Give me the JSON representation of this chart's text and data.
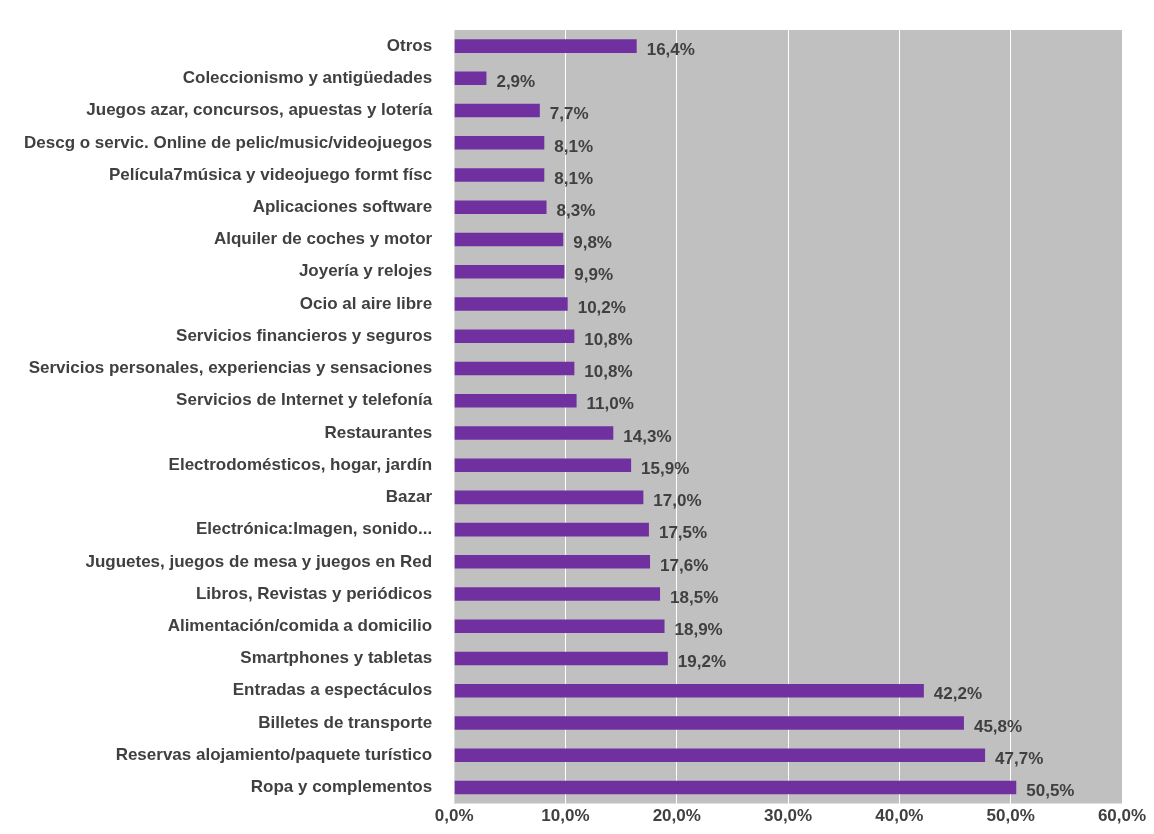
{
  "chart_data": {
    "type": "bar",
    "orientation": "horizontal",
    "categories": [
      "Otros",
      "Coleccionismo y antigüedades",
      "Juegos azar, concursos, apuestas y lotería",
      "Descg o servic. Online de pelic/music/videojuegos",
      "Película7música y videojuego formt físc",
      "Aplicaciones software",
      "Alquiler de coches y motor",
      "Joyería y relojes",
      "Ocio al aire libre",
      "Servicios financieros y seguros",
      "Servicios personales, experiencias y sensaciones",
      "Servicios de Internet y telefonía",
      "Restaurantes",
      "Electrodomésticos, hogar, jardín",
      "Bazar",
      "Electrónica:Imagen, sonido...",
      "Juguetes, juegos de mesa y juegos en Red",
      "Libros, Revistas y periódicos",
      "Alimentación/comida a domicilio",
      "Smartphones y tabletas",
      "Entradas a espectáculos",
      "Billetes de transporte",
      "Reservas alojamiento/paquete turístico",
      "Ropa y complementos"
    ],
    "values": [
      16.4,
      2.9,
      7.7,
      8.1,
      8.1,
      8.3,
      9.8,
      9.9,
      10.2,
      10.8,
      10.8,
      11.0,
      14.3,
      15.9,
      17.0,
      17.5,
      17.6,
      18.5,
      18.9,
      19.2,
      42.2,
      45.8,
      47.7,
      50.5
    ],
    "value_labels": [
      "16,4%",
      "2,9%",
      "7,7%",
      "8,1%",
      "8,1%",
      "8,3%",
      "9,8%",
      "9,9%",
      "10,2%",
      "10,8%",
      "10,8%",
      "11,0%",
      "14,3%",
      "15,9%",
      "17,0%",
      "17,5%",
      "17,6%",
      "18,5%",
      "18,9%",
      "19,2%",
      "42,2%",
      "45,8%",
      "47,7%",
      "50,5%"
    ],
    "color": "#7030a0",
    "xlim": [
      0,
      60
    ],
    "xticks": [
      {
        "value": 0,
        "label": "0,0%"
      },
      {
        "value": 10,
        "label": "10,0%"
      },
      {
        "value": 20,
        "label": "20,0%"
      },
      {
        "value": 30,
        "label": "30,0%"
      },
      {
        "value": 40,
        "label": "40,0%"
      },
      {
        "value": 50,
        "label": "50,0%"
      },
      {
        "value": 60,
        "label": "60,0%"
      }
    ],
    "grid": "x"
  }
}
